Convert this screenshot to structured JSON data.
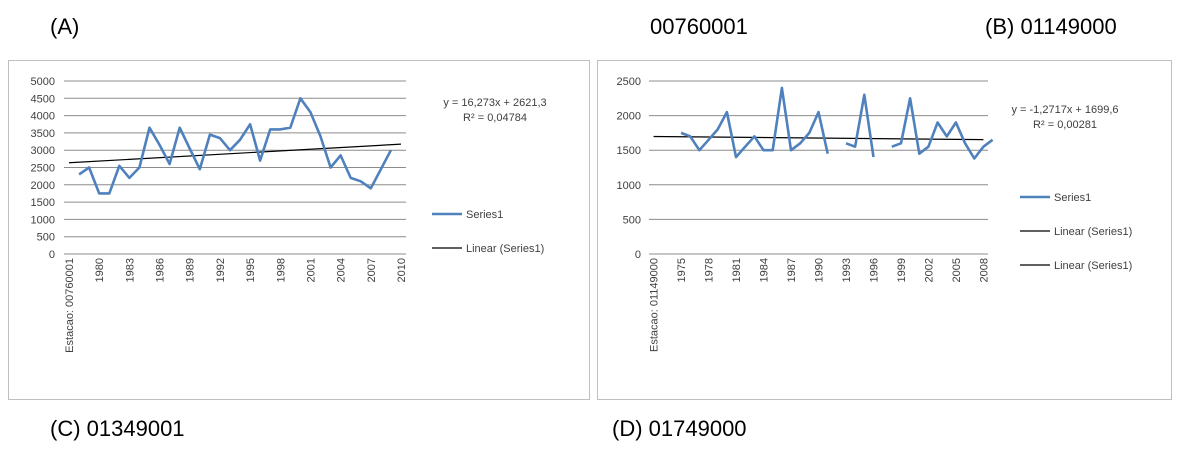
{
  "captions": {
    "a": "(A)",
    "station_a": "00760001",
    "b": "(B) 01149000",
    "c": "(C) 01349001",
    "d": "(D) 01749000"
  },
  "colors": {
    "series": "#4f81bd",
    "trend": "#000000",
    "grid": "#8c8c8c",
    "frame": "#bfbfbf"
  },
  "chart_data": [
    {
      "type": "line",
      "category_first": "Estacao: 00760001",
      "x_ticks": [
        1980,
        1983,
        1986,
        1989,
        1992,
        1995,
        1998,
        2001,
        2004,
        2007,
        2010
      ],
      "ylim": [
        0,
        5000
      ],
      "y_ticks": [
        0,
        500,
        1000,
        1500,
        2000,
        2500,
        3000,
        3500,
        4000,
        4500,
        5000
      ],
      "grid": true,
      "legend_position": "right",
      "series": [
        {
          "name": "Series1",
          "x": [
            1978,
            1979,
            1980,
            1981,
            1982,
            1983,
            1984,
            1985,
            1986,
            1987,
            1988,
            1989,
            1990,
            1991,
            1992,
            1993,
            1994,
            1995,
            1996,
            1997,
            1998,
            1999,
            2000,
            2001,
            2002,
            2003,
            2004,
            2005,
            2006,
            2007,
            2008,
            2009
          ],
          "y": [
            2300,
            2500,
            1750,
            1750,
            2550,
            2200,
            2500,
            3650,
            3150,
            2600,
            3650,
            3050,
            2450,
            3450,
            3350,
            3000,
            3300,
            3750,
            2700,
            3600,
            3600,
            3650,
            4500,
            4100,
            3400,
            2500,
            2850,
            2200,
            2100,
            1900,
            2450,
            3000
          ]
        }
      ],
      "trendline": {
        "name": "Linear (Series1)",
        "equation": "y = 16,273x + 2621,3",
        "r2": "R² = 0,04784",
        "slope": 16.273,
        "intercept": 2621.3
      }
    },
    {
      "type": "line",
      "category_first": "Estacao: 01149000",
      "x_ticks": [
        1975,
        1978,
        1981,
        1984,
        1987,
        1990,
        1993,
        1996,
        1999,
        2002,
        2005,
        2008
      ],
      "ylim": [
        0,
        2500
      ],
      "y_ticks": [
        0,
        500,
        1000,
        1500,
        2000,
        2500
      ],
      "grid": true,
      "legend_position": "right",
      "series": [
        {
          "name": "Series1",
          "x": [
            1975,
            1976,
            1977,
            1978,
            1979,
            1980,
            1981,
            1982,
            1983,
            1984,
            1985,
            1986,
            1987,
            1988,
            1989,
            1990,
            1991,
            null,
            1993,
            1994,
            1995,
            1996,
            null,
            1998,
            1999,
            2000,
            2001,
            2002,
            2003,
            2004,
            2005,
            2006,
            2007,
            2008,
            2009
          ],
          "y": [
            1750,
            1700,
            1500,
            1650,
            1800,
            2050,
            1400,
            1550,
            1700,
            1500,
            1500,
            2400,
            1500,
            1600,
            1750,
            2050,
            1450,
            null,
            1600,
            1550,
            2300,
            1400,
            null,
            1550,
            1600,
            2250,
            1450,
            1550,
            1900,
            1700,
            1900,
            1600,
            1380,
            1550,
            1650
          ]
        }
      ],
      "trendline": {
        "name": "Linear (Series1)",
        "name_extra": "Linear (Series1)",
        "equation": "y = -1,2717x + 1699,6",
        "r2": "R² = 0,00281",
        "slope": -1.2717,
        "intercept": 1699.6
      }
    }
  ]
}
